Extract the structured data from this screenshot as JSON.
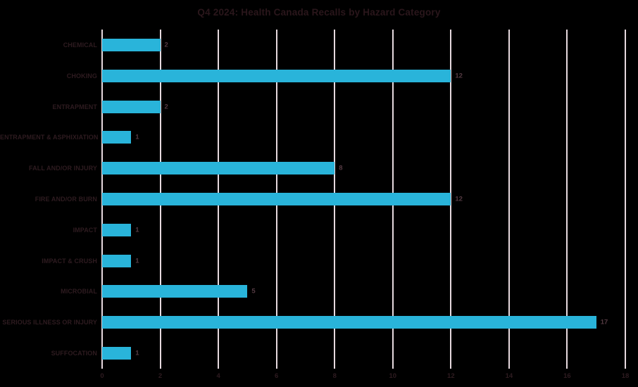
{
  "title": "Q4 2024: Health Canada Recalls by Hazard Category",
  "chart_data": {
    "type": "bar",
    "orientation": "horizontal",
    "title": "Q4 2024: Health Canada Recalls by Hazard Category",
    "categories": [
      "CHEMICAL",
      "CHOKING",
      "ENTRAPMENT",
      "ENTRAPMENT & ASPHIXIATION",
      "FALL AND/OR INJURY",
      "FIRE AND/OR BURN",
      "IMPACT",
      "IMPACT & CRUSH",
      "MICROBIAL",
      "SERIOUS ILLNESS OR INJURY",
      "SUFFOCATION"
    ],
    "values": [
      2,
      12,
      2,
      1,
      8,
      12,
      1,
      1,
      5,
      17,
      1
    ],
    "xlabel": "",
    "ylabel": "",
    "xlim": [
      0,
      18
    ],
    "x_ticks": [
      0,
      2,
      4,
      6,
      8,
      10,
      12,
      14,
      16,
      18
    ],
    "grid": "vertical-only",
    "legend": "none",
    "data_labels": "outside-end",
    "colors": {
      "bar": "#29b4da",
      "gridline": "#e6d9de",
      "title_text": "#2a161b",
      "category_text": "#2e1b20",
      "value_text": "#543a42",
      "background": "#000000"
    }
  }
}
